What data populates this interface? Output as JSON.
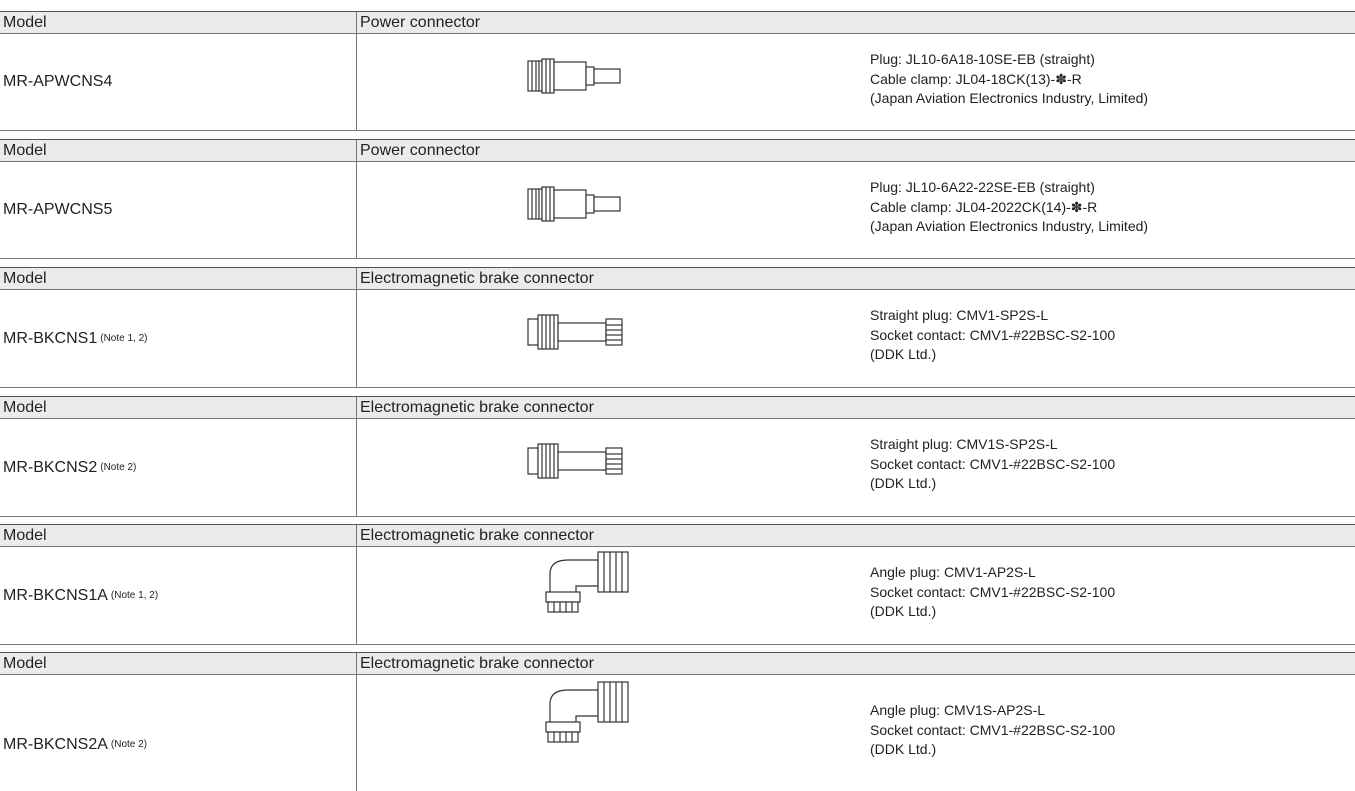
{
  "tables": [
    {
      "header": {
        "model": "Model",
        "connector": "Power connector"
      },
      "model": "MR-APWCNS4",
      "lines": [
        "Plug: JL10-6A18-10SE-EB (straight)",
        "Cable clamp: JL04-18CK(13)-✽-R",
        "(Japan Aviation Electronics Industry, Limited)"
      ]
    },
    {
      "header": {
        "model": "Model",
        "connector": "Power connector"
      },
      "model": "MR-APWCNS5",
      "lines": [
        "Plug: JL10-6A22-22SE-EB (straight)",
        "Cable clamp: JL04-2022CK(14)-✽-R",
        "(Japan Aviation Electronics Industry, Limited)"
      ]
    },
    {
      "header": {
        "model": "Model",
        "connector": "Electromagnetic brake connector"
      },
      "model": "MR-BKCNS1",
      "note": "(Note 1, 2)",
      "lines": [
        "Straight plug: CMV1-SP2S-L",
        "Socket contact: CMV1-#22BSC-S2-100",
        "(DDK Ltd.)"
      ]
    },
    {
      "header": {
        "model": "Model",
        "connector": "Electromagnetic brake connector"
      },
      "model": "MR-BKCNS2",
      "note": "(Note 2)",
      "lines": [
        "Straight plug: CMV1S-SP2S-L",
        "Socket contact: CMV1-#22BSC-S2-100",
        "(DDK Ltd.)"
      ]
    },
    {
      "header": {
        "model": "Model",
        "connector": "Electromagnetic brake connector"
      },
      "model": "MR-BKCNS1A",
      "note": "(Note 1, 2)",
      "lines": [
        "Angle plug: CMV1-AP2S-L",
        "Socket contact: CMV1-#22BSC-S2-100",
        "(DDK Ltd.)"
      ]
    },
    {
      "header": {
        "model": "Model",
        "connector": "Electromagnetic brake connector"
      },
      "model": "MR-BKCNS2A",
      "note": "(Note 2)",
      "lines": [
        "Angle plug: CMV1S-AP2S-L",
        "Socket contact: CMV1-#22BSC-S2-100",
        "(DDK Ltd.)"
      ]
    }
  ]
}
